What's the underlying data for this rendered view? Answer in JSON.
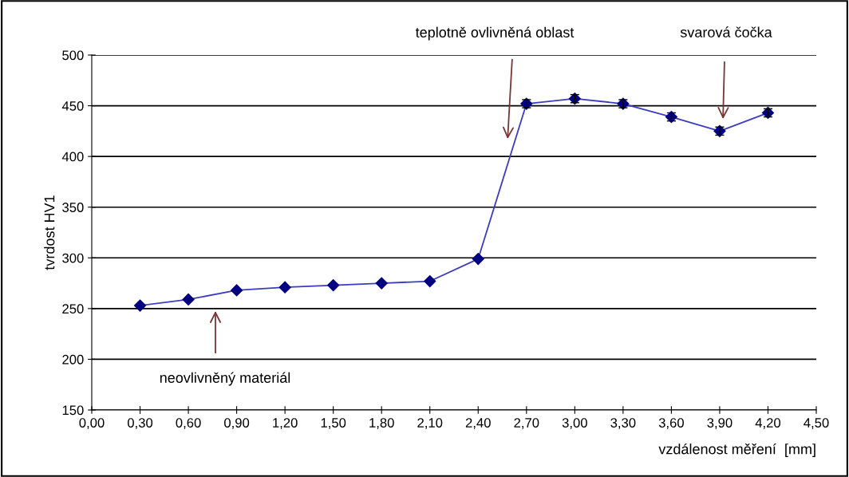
{
  "chart_data": {
    "type": "line",
    "xlabel": "vzdálenost měření  [mm]",
    "ylabel": "tvrdost HV1",
    "x": [
      0.3,
      0.6,
      0.9,
      1.2,
      1.5,
      1.8,
      2.1,
      2.4,
      2.7,
      3.0,
      3.3,
      3.6,
      3.9,
      4.2
    ],
    "series": [
      {
        "color": "#3c3cc0",
        "values": [
          253,
          259,
          268,
          271,
          273,
          275,
          277,
          299,
          452,
          457,
          452,
          439,
          425,
          443
        ],
        "errors": [
          null,
          null,
          null,
          null,
          null,
          null,
          null,
          null,
          4,
          4,
          4,
          4,
          4,
          4
        ]
      }
    ],
    "xlim": [
      0,
      4.5
    ],
    "xticks": [
      {
        "value": 0,
        "label": "0,00"
      },
      {
        "value": 0.3,
        "label": "0,30"
      },
      {
        "value": 0.6,
        "label": "0,60"
      },
      {
        "value": 0.9,
        "label": "0,90"
      },
      {
        "value": 1.2,
        "label": "1,20"
      },
      {
        "value": 1.5,
        "label": "1,50"
      },
      {
        "value": 1.8,
        "label": "1,80"
      },
      {
        "value": 2.1,
        "label": "2,10"
      },
      {
        "value": 2.4,
        "label": "2,40"
      },
      {
        "value": 2.7,
        "label": "2,70"
      },
      {
        "value": 3.0,
        "label": "3,00"
      },
      {
        "value": 3.3,
        "label": "3,30"
      },
      {
        "value": 3.6,
        "label": "3,60"
      },
      {
        "value": 3.9,
        "label": "3,90"
      },
      {
        "value": 4.2,
        "label": "4,20"
      },
      {
        "value": 4.5,
        "label": "4,50"
      }
    ],
    "ylim": [
      150,
      500
    ],
    "yticks": [
      150,
      200,
      250,
      300,
      350,
      400,
      450,
      500
    ],
    "grid": "y",
    "marker": "diamond",
    "line_style": "solid",
    "legend": false,
    "annotations": [
      "neovlivněný materiál",
      "teplotně ovlivněná oblast",
      "svarová čočka"
    ]
  }
}
